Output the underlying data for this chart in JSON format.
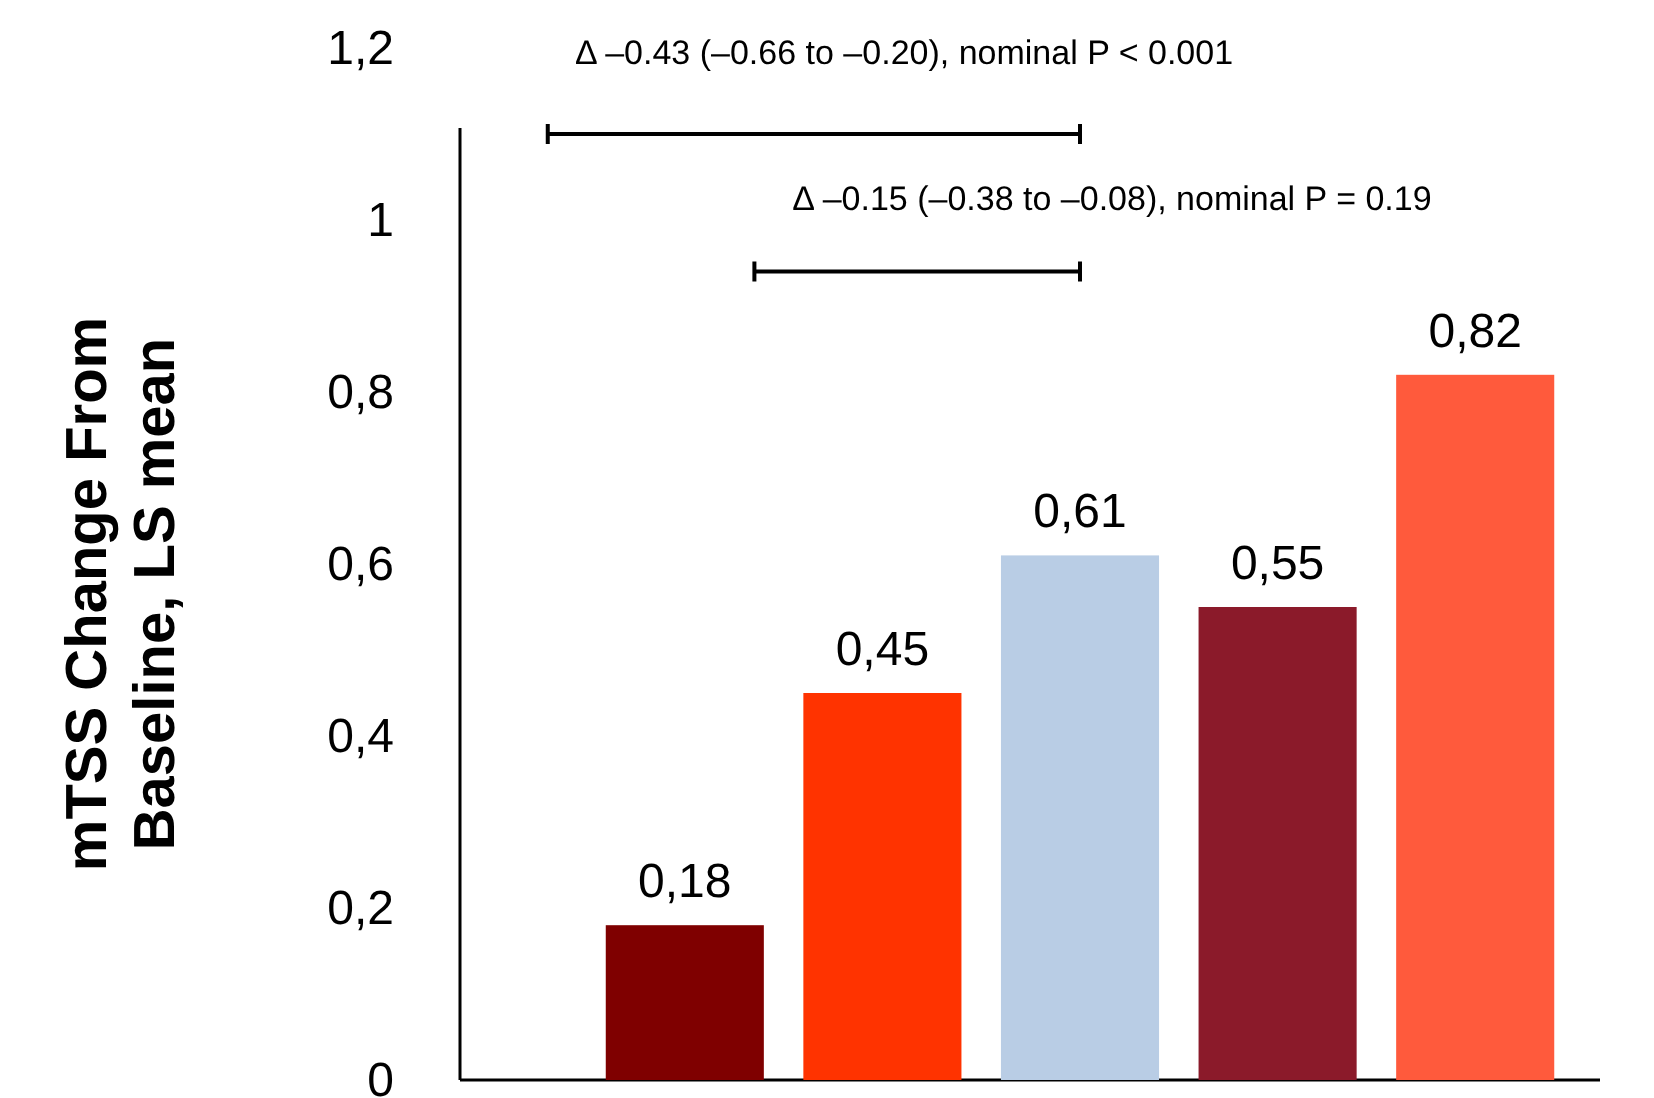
{
  "chart_data": {
    "type": "bar",
    "ylabel": "mTSS Change From Baseline, LS mean",
    "categories": [
      null,
      null,
      null,
      null,
      null
    ],
    "values": [
      0.18,
      0.45,
      0.61,
      0.55,
      0.82
    ],
    "colors": [
      "#7f0000",
      "#ff3300",
      "#b9cde5",
      "#8b1a2a",
      "#ff5a3c"
    ],
    "value_labels": [
      "0,18",
      "0,45",
      "0,61",
      "0,55",
      "0,82"
    ],
    "ylim": [
      0,
      1.2
    ],
    "yticks": [
      0,
      {
        "value": 0.2,
        "label": "0,2"
      },
      {
        "value": 0.4,
        "label": "0,4"
      },
      {
        "value": 0.6,
        "label": "0,6"
      },
      {
        "value": 0.8,
        "label": "0,8"
      },
      1,
      {
        "value": 1.2,
        "label": "1,2"
      }
    ],
    "annotations": [
      "Δ –0.43 (–0.66 to –0.20), nominal P < 0.001",
      "Δ –0.15 (–0.38 to –0.08), nominal P = 0.19"
    ]
  }
}
